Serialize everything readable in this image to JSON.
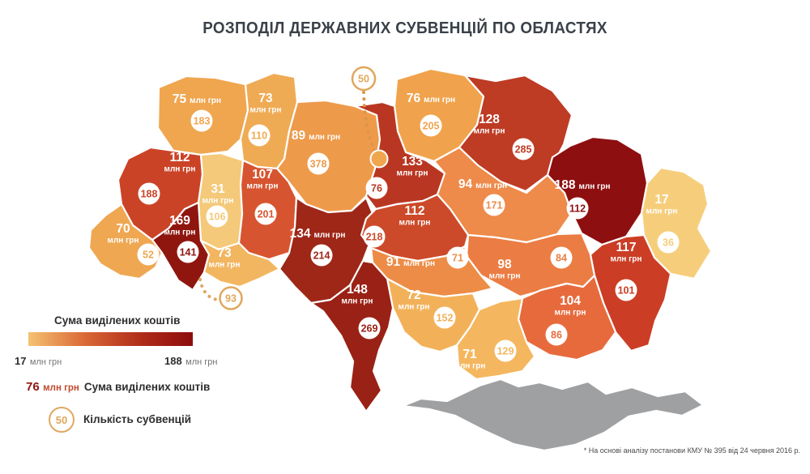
{
  "title": "РОЗПОДІЛ ДЕРЖАВНИХ СУБВЕНЦІЙ ПО ОБЛАСТЯХ",
  "footnote": "* На основі аналізу постанови КМУ № 395 від 24 червня 2016 р.",
  "legend": {
    "gradient_title": "Сума виділених коштів",
    "min": {
      "value": "17",
      "unit": "млн грн"
    },
    "max": {
      "value": "188",
      "unit": "млн грн"
    },
    "amount_example": {
      "value": "76",
      "unit": "млн грн",
      "label": "Сума виділених коштів"
    },
    "count_example": {
      "value": "50",
      "label": "Кількість субвенцій"
    },
    "gradient_colors": [
      "#F5C272",
      "#D96734",
      "#AE2A18",
      "#8C0E0D"
    ]
  },
  "colors": {
    "background": "#FFFFFF",
    "border": "#FFFFFF",
    "title_text": "#3A4149",
    "label_text": "#FFFFFF",
    "crimea": "#9FA0A2",
    "kyiv_city_dot": "#F0A64E",
    "callout_ring": "#E0A75C",
    "dotted_connector": "#DC9546"
  },
  "chart_data": {
    "type": "choropleth-map",
    "title": "РОЗПОДІЛ ДЕРЖАВНИХ СУБВЕНЦІЙ ПО ОБЛАСТЯХ",
    "unit": "млн грн",
    "amount_range": [
      17,
      188
    ],
    "amount_legend_label": "Сума виділених коштів",
    "count_legend_label": "Кількість субвенцій",
    "regions": [
      {
        "id": "volyn",
        "amount": 75,
        "count": 183,
        "color": "#EFA64F"
      },
      {
        "id": "rivne",
        "amount": 73,
        "count": 110,
        "color": "#EFAB54"
      },
      {
        "id": "zhytomyr",
        "amount": 89,
        "count": 378,
        "color": "#EE9A4B"
      },
      {
        "id": "chernihiv",
        "amount": 76,
        "count": 205,
        "color": "#F0A34C"
      },
      {
        "id": "sumy",
        "amount": 128,
        "count": 285,
        "color": "#BE3B24"
      },
      {
        "id": "kyiv_oblast",
        "amount": 133,
        "count": 76,
        "color": "#B93722"
      },
      {
        "id": "lviv",
        "amount": 112,
        "count": 188,
        "color": "#CB4327"
      },
      {
        "id": "ternopil",
        "amount": 31,
        "count": 106,
        "color": "#F4C979"
      },
      {
        "id": "khmelnytskyi",
        "amount": 107,
        "count": 201,
        "color": "#D75430"
      },
      {
        "id": "zakarpattia",
        "amount": 70,
        "count": 52,
        "color": "#EFA751"
      },
      {
        "id": "ivano_frankivsk",
        "amount": 169,
        "count": 141,
        "color": "#8F160F"
      },
      {
        "id": "chernivtsi",
        "amount": 73,
        "count": 93,
        "color": "#F2B660"
      },
      {
        "id": "vinnytsia",
        "amount": 134,
        "count": 214,
        "color": "#9E2718"
      },
      {
        "id": "cherkasy",
        "amount": 112,
        "count": 218,
        "color": "#CC4A29"
      },
      {
        "id": "poltava",
        "amount": 94,
        "count": 171,
        "color": "#EE8A4A"
      },
      {
        "id": "kharkiv",
        "amount": 188,
        "count": 112,
        "color": "#8E0F10"
      },
      {
        "id": "luhansk",
        "amount": 17,
        "count": 36,
        "color": "#F6CE7B"
      },
      {
        "id": "kirovohrad",
        "amount": 91,
        "count": 71,
        "color": "#ED8C46"
      },
      {
        "id": "dnipropetrovsk",
        "amount": 98,
        "count": 84,
        "color": "#EB7C43"
      },
      {
        "id": "donetsk",
        "amount": 117,
        "count": 101,
        "color": "#CB3D25"
      },
      {
        "id": "odesa",
        "amount": 148,
        "count": 269,
        "color": "#9A2115"
      },
      {
        "id": "mykolaiv",
        "amount": 72,
        "count": 152,
        "color": "#F2B159"
      },
      {
        "id": "kherson",
        "amount": 71,
        "count": 129,
        "color": "#F4B75F"
      },
      {
        "id": "zaporizhzhia",
        "amount": 104,
        "count": 86,
        "color": "#E76A3D"
      }
    ],
    "no_data_regions": [
      {
        "id": "crimea",
        "color": "#9FA0A2"
      }
    ],
    "kyiv_city": {
      "count": "50"
    }
  }
}
